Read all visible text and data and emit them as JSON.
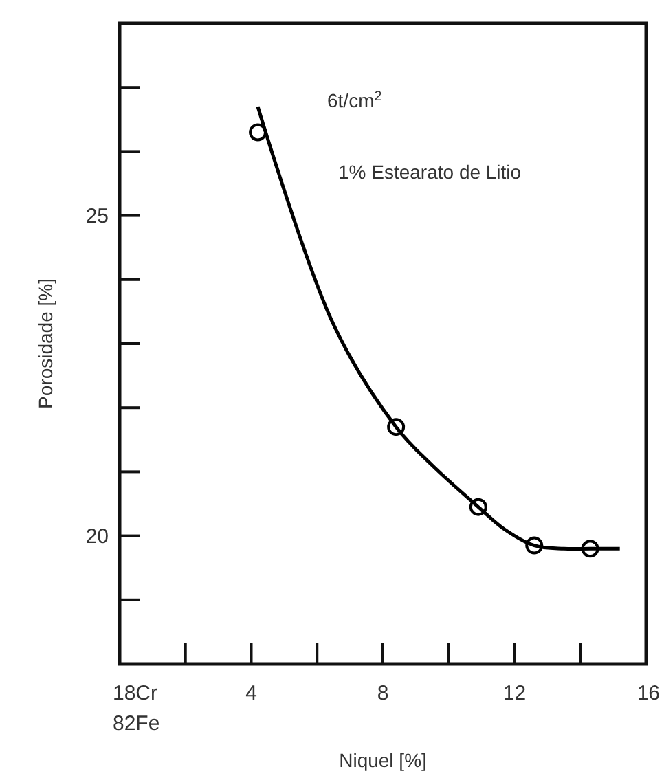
{
  "chart_data": {
    "type": "scatter",
    "xlabel": "Niquel [%]",
    "ylabel": "Porosidade [%]",
    "annotations": [
      "6t/cm$^{2}$",
      "1% Estearato de Litio"
    ],
    "xlim": [
      0,
      16
    ],
    "xticks": [
      {
        "value": 0,
        "label": "18Cr\n82Fe"
      },
      {
        "value": 2,
        "label": null
      },
      4,
      {
        "value": 6,
        "label": null
      },
      8,
      {
        "value": 10,
        "label": null
      },
      12,
      {
        "value": 14,
        "label": null
      },
      16
    ],
    "ylim": [
      18,
      28
    ],
    "yticks": [
      {
        "value": 19,
        "label": null
      },
      20,
      {
        "value": 21,
        "label": null
      },
      {
        "value": 22,
        "label": null
      },
      {
        "value": 23,
        "label": null
      },
      {
        "value": 24,
        "label": null
      },
      25,
      {
        "value": 26,
        "label": null
      },
      {
        "value": 27,
        "label": null
      }
    ],
    "grid": false,
    "series": [
      {
        "color": "#000000",
        "marker": "circle",
        "x": [
          4.2,
          8.4,
          10.9,
          12.6,
          14.3
        ],
        "values": [
          26.3,
          21.7,
          20.45,
          19.85,
          19.8
        ]
      },
      {
        "type": "line",
        "color": "#000000",
        "marker": "none",
        "line_style": "solid",
        "x": [
          4.2,
          6.5,
          8.4,
          9.5,
          10.9,
          11.7,
          12.6,
          13.5,
          14.3,
          15.2
        ],
        "values": [
          26.7,
          23.3,
          21.7,
          21.1,
          20.45,
          20.1,
          19.85,
          19.8,
          19.8,
          19.8
        ]
      }
    ]
  }
}
